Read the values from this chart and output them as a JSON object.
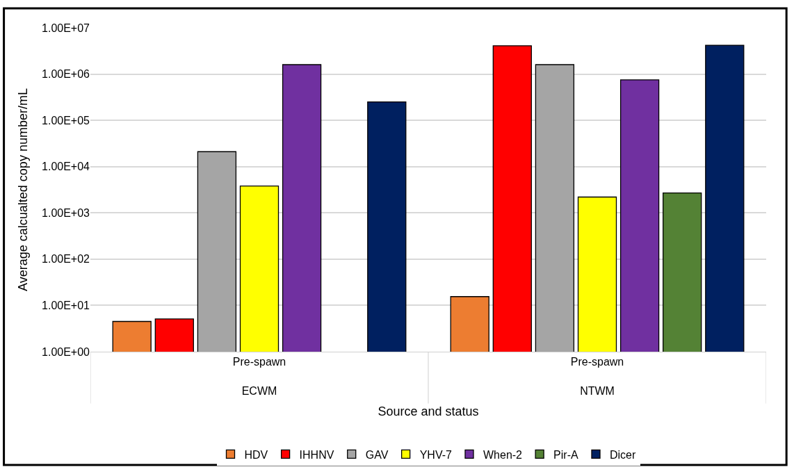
{
  "chart_data": {
    "type": "bar",
    "xlabel": "Source and status",
    "ylabel": "Average calcualted copy number/mL",
    "categories": [
      "Pre-spawn\nECWM",
      "Pre-spawn\nNTWM"
    ],
    "series": [
      {
        "name": "HDV",
        "color": "#ed7d31",
        "values": [
          4.5,
          15.5
        ]
      },
      {
        "name": "IHHNV",
        "color": "#ff0000",
        "values": [
          5.1,
          4100000
        ]
      },
      {
        "name": "GAV",
        "color": "#a5a5a5",
        "values": [
          21000,
          1600000
        ]
      },
      {
        "name": "YHV-7",
        "color": "#ffff00",
        "values": [
          3800,
          2200
        ]
      },
      {
        "name": "When-2",
        "color": "#7030a0",
        "values": [
          1600000,
          750000
        ]
      },
      {
        "name": "Pir-A",
        "color": "#548235",
        "values": [
          null,
          2700
        ]
      },
      {
        "name": "Dicer",
        "color": "#002060",
        "values": [
          250000,
          4200000
        ]
      }
    ],
    "log": "y",
    "ylim": [
      1,
      10000000
    ],
    "yticks": [
      {
        "value": 1,
        "label": "1.00E+00"
      },
      {
        "value": 10,
        "label": "1.00E+01"
      },
      {
        "value": 100,
        "label": "1.00E+02"
      },
      {
        "value": 1000,
        "label": "1.00E+03"
      },
      {
        "value": 10000,
        "label": "1.00E+04"
      },
      {
        "value": 100000,
        "label": "1.00E+05"
      },
      {
        "value": 1000000,
        "label": "1.00E+06"
      },
      {
        "value": 10000000,
        "label": "1.00E+07"
      }
    ],
    "grid": "y",
    "legend": "bottom"
  }
}
